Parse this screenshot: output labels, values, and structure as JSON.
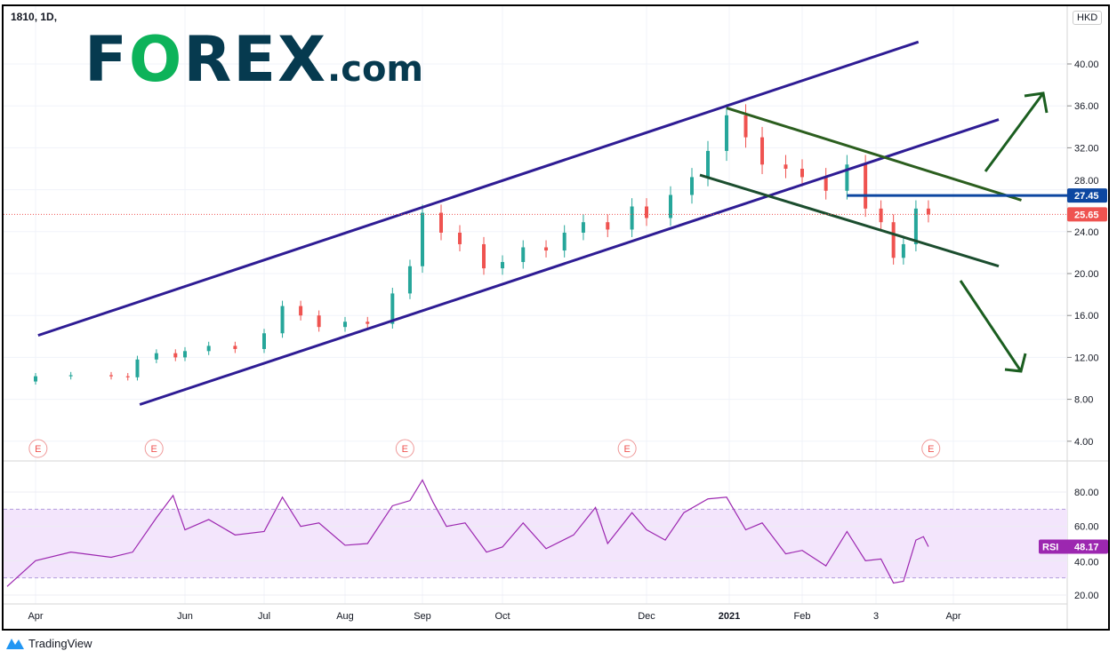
{
  "header": {
    "symbol_title": "1810, 1D,",
    "currency": "HKD"
  },
  "logo": {
    "text_f": "F",
    "text_o": "O",
    "text_rex": "REX",
    ".com": ".com"
  },
  "footer": {
    "brand": "TradingView"
  },
  "colors": {
    "up": "#26a69a",
    "down": "#ef5350",
    "channel": "#2e1c94",
    "green_upper": "#2b5e1e",
    "green_lower": "#1b4d2e",
    "resistance": "#0d47a1",
    "rsi": "#9c27b0",
    "rsi_band": "#f3e5fc"
  },
  "chart_data": [
    {
      "type": "candlestick",
      "symbol": "1810",
      "interval": "1D",
      "currency": "HKD",
      "ylim": [
        2,
        44
      ],
      "yticks": [
        "4.00",
        "8.00",
        "12.00",
        "16.00",
        "20.00",
        "24.00",
        "28.00",
        "32.00",
        "36.00",
        "40.00"
      ],
      "xticks": [
        {
          "label": "Apr",
          "date": "2020-04-01"
        },
        {
          "label": "Jun",
          "date": "2020-06-01"
        },
        {
          "label": "Jul",
          "date": "2020-07-01"
        },
        {
          "label": "Aug",
          "date": "2020-08-01"
        },
        {
          "label": "Sep",
          "date": "2020-09-01"
        },
        {
          "label": "Oct",
          "date": "2020-10-01"
        },
        {
          "label": "Dec",
          "date": "2020-12-01"
        },
        {
          "label": "2021",
          "date": "2021-01-01"
        },
        {
          "label": "Feb",
          "date": "2021-02-01"
        },
        {
          "label": "3",
          "date": "2021-03-01"
        },
        {
          "label": "Apr",
          "date": "2021-04-01"
        }
      ],
      "closes": [
        [
          "2020-03-20",
          9.7
        ],
        [
          "2020-04-01",
          10.2
        ],
        [
          "2020-04-15",
          10.3
        ],
        [
          "2020-05-01",
          10.2
        ],
        [
          "2020-05-08",
          10.1
        ],
        [
          "2020-05-12",
          11.8
        ],
        [
          "2020-05-20",
          12.4
        ],
        [
          "2020-05-28",
          12.0
        ],
        [
          "2020-06-01",
          12.6
        ],
        [
          "2020-06-10",
          13.1
        ],
        [
          "2020-06-20",
          12.8
        ],
        [
          "2020-07-01",
          14.3
        ],
        [
          "2020-07-08",
          16.9
        ],
        [
          "2020-07-15",
          16.0
        ],
        [
          "2020-07-22",
          14.9
        ],
        [
          "2020-08-01",
          15.4
        ],
        [
          "2020-08-10",
          15.2
        ],
        [
          "2020-08-20",
          18.1
        ],
        [
          "2020-08-27",
          20.7
        ],
        [
          "2020-09-01",
          25.8
        ],
        [
          "2020-09-08",
          23.9
        ],
        [
          "2020-09-15",
          22.8
        ],
        [
          "2020-09-24",
          20.5
        ],
        [
          "2020-10-01",
          21.1
        ],
        [
          "2020-10-10",
          22.5
        ],
        [
          "2020-10-20",
          22.2
        ],
        [
          "2020-10-28",
          23.9
        ],
        [
          "2020-11-05",
          24.9
        ],
        [
          "2020-11-15",
          24.2
        ],
        [
          "2020-11-25",
          26.4
        ],
        [
          "2020-12-01",
          25.3
        ],
        [
          "2020-12-10",
          27.5
        ],
        [
          "2020-12-18",
          29.2
        ],
        [
          "2020-12-24",
          31.7
        ],
        [
          "2020-12-31",
          35.1
        ],
        [
          "2021-01-08",
          33.0
        ],
        [
          "2021-01-15",
          30.4
        ],
        [
          "2021-01-25",
          30.0
        ],
        [
          "2021-02-01",
          29.2
        ],
        [
          "2021-02-10",
          27.9
        ],
        [
          "2021-02-18",
          30.4
        ],
        [
          "2021-02-25",
          26.2
        ],
        [
          "2021-03-03",
          24.9
        ],
        [
          "2021-03-08",
          21.5
        ],
        [
          "2021-03-12",
          22.8
        ],
        [
          "2021-03-17",
          26.2
        ],
        [
          "2021-03-22",
          25.65
        ]
      ],
      "last_price": "25.65",
      "resistance_level": "27.45",
      "trendlines": [
        {
          "color": "channel",
          "from": [
            "2020-04-02",
            14.1
          ],
          "to": [
            "2021-03-18",
            42.1
          ]
        },
        {
          "color": "channel",
          "from": [
            "2020-05-13",
            7.5
          ],
          "to": [
            "2021-04-19",
            34.7
          ]
        },
        {
          "color": "green_upper",
          "from": [
            "2020-12-31",
            35.8
          ],
          "to": [
            "2021-04-28",
            27.0
          ]
        },
        {
          "color": "green_lower",
          "from": [
            "2020-12-21",
            29.4
          ],
          "to": [
            "2021-04-19",
            20.7
          ]
        }
      ],
      "earnings_marker": "E",
      "earnings_dates": [
        "2020-04-02",
        "2020-05-19",
        "2020-08-25",
        "2020-11-23",
        "2021-03-23"
      ]
    },
    {
      "type": "line",
      "indicator": "RSI",
      "ylim": [
        15,
        92
      ],
      "yticks": [
        "20.00",
        "40.00",
        "60.00",
        "80.00"
      ],
      "band": [
        30,
        70
      ],
      "values": [
        [
          "2020-03-20",
          25
        ],
        [
          "2020-04-01",
          40
        ],
        [
          "2020-04-15",
          45
        ],
        [
          "2020-05-01",
          42
        ],
        [
          "2020-05-10",
          45
        ],
        [
          "2020-05-20",
          65
        ],
        [
          "2020-05-27",
          78
        ],
        [
          "2020-06-01",
          58
        ],
        [
          "2020-06-10",
          64
        ],
        [
          "2020-06-20",
          55
        ],
        [
          "2020-07-01",
          57
        ],
        [
          "2020-07-08",
          77
        ],
        [
          "2020-07-15",
          60
        ],
        [
          "2020-07-22",
          62
        ],
        [
          "2020-08-01",
          49
        ],
        [
          "2020-08-10",
          50
        ],
        [
          "2020-08-20",
          72
        ],
        [
          "2020-08-27",
          75
        ],
        [
          "2020-09-01",
          87
        ],
        [
          "2020-09-05",
          74
        ],
        [
          "2020-09-10",
          60
        ],
        [
          "2020-09-17",
          62
        ],
        [
          "2020-09-25",
          45
        ],
        [
          "2020-10-01",
          48
        ],
        [
          "2020-10-10",
          62
        ],
        [
          "2020-10-20",
          47
        ],
        [
          "2020-11-01",
          55
        ],
        [
          "2020-11-10",
          71
        ],
        [
          "2020-11-15",
          50
        ],
        [
          "2020-11-25",
          68
        ],
        [
          "2020-12-01",
          58
        ],
        [
          "2020-12-08",
          52
        ],
        [
          "2020-12-15",
          68
        ],
        [
          "2020-12-24",
          76
        ],
        [
          "2020-12-31",
          77
        ],
        [
          "2021-01-08",
          58
        ],
        [
          "2021-01-15",
          62
        ],
        [
          "2021-01-25",
          44
        ],
        [
          "2021-02-01",
          46
        ],
        [
          "2021-02-10",
          37
        ],
        [
          "2021-02-18",
          57
        ],
        [
          "2021-02-25",
          40
        ],
        [
          "2021-03-03",
          41
        ],
        [
          "2021-03-08",
          27
        ],
        [
          "2021-03-12",
          28
        ],
        [
          "2021-03-17",
          52
        ],
        [
          "2021-03-20",
          54
        ],
        [
          "2021-03-22",
          48.17
        ]
      ],
      "label": "RSI",
      "last_value": "48.17"
    }
  ]
}
